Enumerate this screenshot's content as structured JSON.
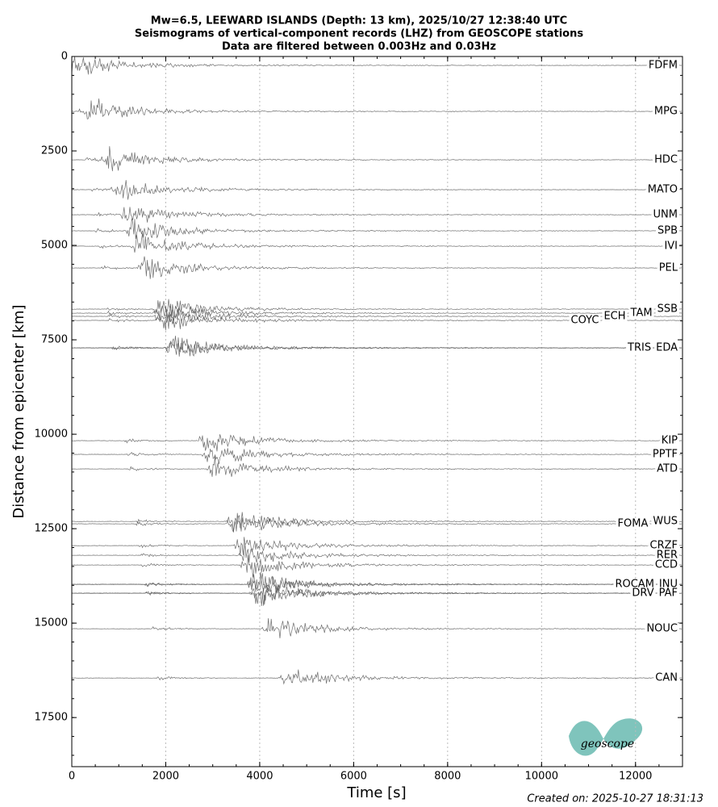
{
  "chart_data": {
    "type": "record-section",
    "title": [
      "Mw=6.5, LEEWARD ISLANDS (Depth: 13 km), 2025/10/27 12:38:40 UTC",
      "Seismograms of vertical-component records (LHZ) from GEOSCOPE stations",
      "Data are filtered between 0.003Hz and 0.03Hz"
    ],
    "xlabel": "Time [s]",
    "ylabel": "Distance from epicenter [km]",
    "xlim": [
      0,
      13000
    ],
    "xticks": [
      0,
      2000,
      4000,
      6000,
      8000,
      10000,
      12000
    ],
    "ylim": [
      0,
      18800
    ],
    "yticks": [
      0,
      2500,
      5000,
      7500,
      10000,
      12500,
      15000,
      17500
    ],
    "y_inverted": true,
    "grid": "x",
    "color": "#555555",
    "categories": [
      "FDFM",
      "MPG",
      "HDC",
      "MATO",
      "UNM",
      "SPB",
      "IVI",
      "PEL",
      "SSB",
      "TAM",
      "ECH",
      "COYC",
      "EDA",
      "TRIS",
      "KIP",
      "PPTF",
      "ATD",
      "WUS",
      "FOMA",
      "CRZF",
      "RER",
      "CCD",
      "INU",
      "ROCAM",
      "PAF",
      "DRV",
      "NOUC",
      "CAN"
    ],
    "values": [
      235,
      1453,
      2735,
      3526,
      4188,
      4615,
      5021,
      5598,
      6688,
      6795,
      6880,
      6987,
      7714,
      7714,
      10171,
      10534,
      10919,
      12308,
      12372,
      12949,
      13205,
      13462,
      13974,
      13974,
      14209,
      14209,
      15150,
      16453
    ],
    "created": "Created on: 2025-10-27 18:31:13",
    "logo_text": "geoscope"
  }
}
